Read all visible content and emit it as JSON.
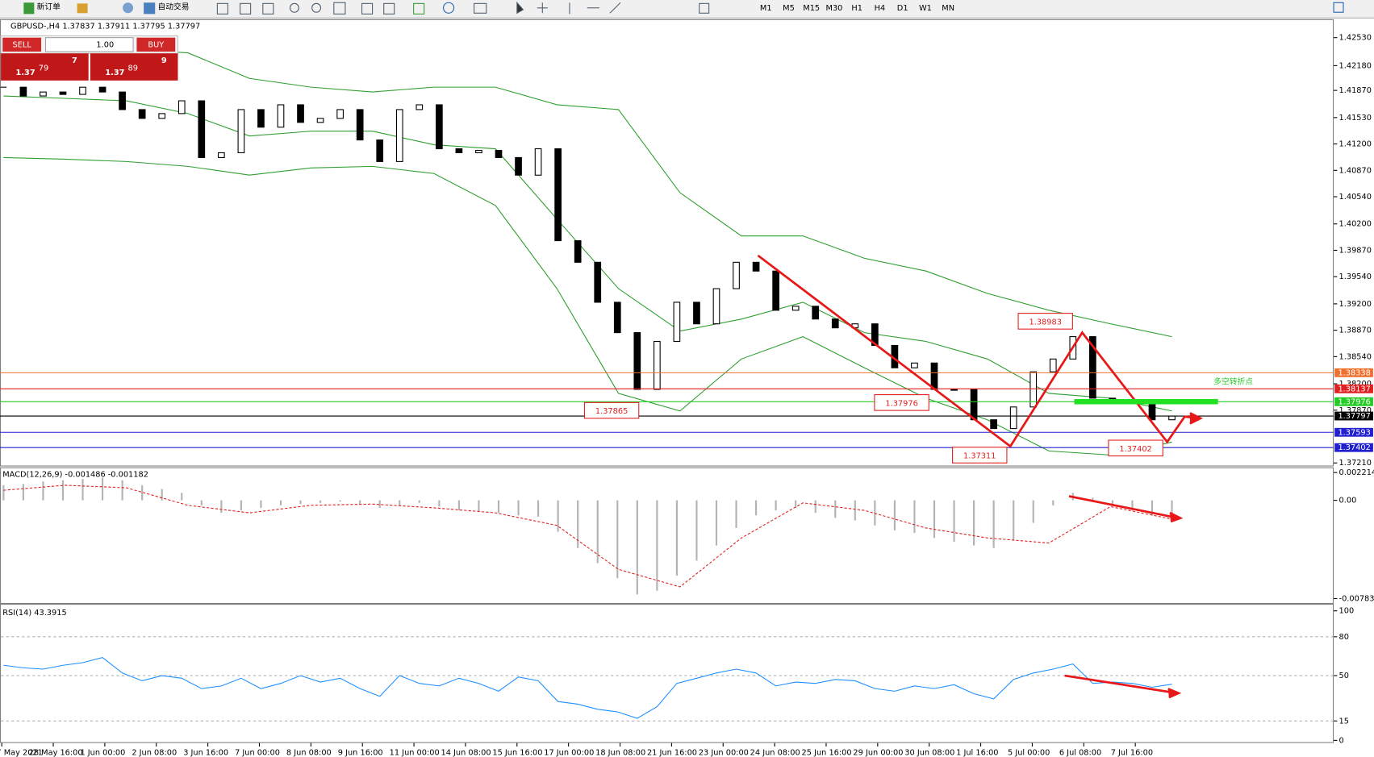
{
  "toolbar": {
    "new_order": "新订单",
    "auto_trading": "自动交易",
    "timeframes": [
      "M1",
      "M5",
      "M15",
      "M30",
      "H1",
      "H4",
      "D1",
      "W1",
      "MN"
    ]
  },
  "trade_panel": {
    "sell": "SELL",
    "lot": "1.00",
    "buy": "BUY",
    "sell_big": "1.37",
    "sell_pips": "79",
    "sell_frac": "7",
    "buy_big": "1.37",
    "buy_pips": "89",
    "buy_frac": "9"
  },
  "chart_data": [
    {
      "type": "candlestick",
      "title": "GBPUSD-,H4 1.37837 1.37911 1.37795 1.37797",
      "close": [
        1.4191,
        1.418,
        1.4185,
        1.4182,
        1.4191,
        1.4185,
        1.4163,
        1.4152,
        1.4158,
        1.4174,
        1.4103,
        1.4109,
        1.4163,
        1.4141,
        1.4169,
        1.4147,
        1.4152,
        1.4163,
        1.4125,
        1.4098,
        1.4163,
        1.4169,
        1.4114,
        1.4109,
        1.4112,
        1.4103,
        1.4081,
        1.4114,
        1.3999,
        1.3972,
        1.3922,
        1.3884,
        1.3813,
        1.3873,
        1.3922,
        1.3895,
        1.3939,
        1.3972,
        1.3961,
        1.3912,
        1.3917,
        1.3901,
        1.389,
        1.3895,
        1.3868,
        1.384,
        1.3846,
        1.3813,
        1.3813,
        1.3775,
        1.3764,
        1.3791,
        1.3835,
        1.3851,
        1.3879,
        1.3802,
        1.3797,
        1.3797,
        1.3775,
        1.37797
      ],
      "up_color": "#ffffff",
      "down_color": "#000000",
      "bands": {
        "color": "#2e9e2e",
        "upper": [
          1.424,
          1.4237,
          1.4239,
          1.4234,
          1.4202,
          1.4191,
          1.4185,
          1.4191,
          1.4191,
          1.4169,
          1.4163,
          1.4059,
          1.4005,
          1.4005,
          1.3977,
          1.3961,
          1.3933,
          1.3912,
          1.3895,
          1.3879
        ],
        "middle": [
          1.418,
          1.4177,
          1.4174,
          1.4158,
          1.413,
          1.4136,
          1.4136,
          1.4119,
          1.4114,
          1.4026,
          1.3939,
          1.3886,
          1.3901,
          1.3922,
          1.3884,
          1.3873,
          1.3851,
          1.3808,
          1.3802,
          1.3786
        ],
        "lower": [
          1.4103,
          1.4101,
          1.4098,
          1.4092,
          1.4081,
          1.409,
          1.4092,
          1.4083,
          1.4043,
          1.3939,
          1.3808,
          1.3786,
          1.3851,
          1.3879,
          1.384,
          1.3802,
          1.3775,
          1.3736,
          1.3731,
          1.3747
        ]
      },
      "ylim": [
        1.37177,
        1.4276
      ],
      "yticks": [
        {
          "value": 1.4253,
          "label": "1.42530"
        },
        {
          "value": 1.4218,
          "label": "1.42180"
        },
        {
          "value": 1.4187,
          "label": "1.41870"
        },
        {
          "value": 1.4153,
          "label": "1.41530"
        },
        {
          "value": 1.412,
          "label": "1.41200"
        },
        {
          "value": 1.4087,
          "label": "1.40870"
        },
        {
          "value": 1.4054,
          "label": "1.40540"
        },
        {
          "value": 1.402,
          "label": "1.40200"
        },
        {
          "value": 1.3987,
          "label": "1.39870"
        },
        {
          "value": 1.3954,
          "label": "1.39540"
        },
        {
          "value": 1.392,
          "label": "1.39200"
        },
        {
          "value": 1.3887,
          "label": "1.38870"
        },
        {
          "value": 1.3854,
          "label": "1.38540"
        },
        {
          "value": 1.382,
          "label": "1.38200"
        },
        {
          "value": 1.3787,
          "label": "1.37870"
        },
        {
          "value": 1.3721,
          "label": "1.37210"
        }
      ],
      "levels": [
        {
          "value": 1.38338,
          "color": "#f07030"
        },
        {
          "value": 1.38137,
          "color": "#e02020"
        },
        {
          "value": 1.37976,
          "color": "#22cc22"
        },
        {
          "value": 1.37797,
          "color": "#000000"
        },
        {
          "value": 1.37593,
          "color": "#2020d0"
        },
        {
          "value": 1.37402,
          "color": "#2020d0"
        }
      ],
      "annotations": [
        1.38983,
        1.37865,
        1.37976,
        1.37311,
        1.37402
      ],
      "annotation_text": "多空转折点"
    },
    {
      "type": "macd",
      "title": "MACD(12,26,9) -0.001486 -0.001182",
      "histogram": [
        0.0012,
        0.0013,
        0.0015,
        0.0016,
        0.0017,
        0.0018,
        0.0016,
        0.0012,
        0.0009,
        0.0006,
        -0.0004,
        -0.001,
        -0.0008,
        -0.0006,
        -0.0004,
        -0.0003,
        -0.0002,
        -0.0001,
        -0.0003,
        -0.0006,
        -0.0004,
        -0.0002,
        -0.0005,
        -0.0008,
        -0.0009,
        -0.001,
        -0.0012,
        -0.0013,
        -0.0025,
        -0.0038,
        -0.005,
        -0.0062,
        -0.0075,
        -0.0072,
        -0.006,
        -0.0048,
        -0.0036,
        -0.0022,
        -0.0012,
        -0.0008,
        -0.0006,
        -0.001,
        -0.0014,
        -0.0016,
        -0.002,
        -0.0024,
        -0.0026,
        -0.003,
        -0.0033,
        -0.0036,
        -0.0038,
        -0.0032,
        -0.0018,
        -0.0004,
        0.0006,
        0.0002,
        -0.0004,
        -0.0008,
        -0.0012,
        -0.0014
      ],
      "signal": [
        0.0008,
        0.0012,
        0.001,
        -0.0004,
        -0.001,
        -0.0004,
        -0.0003,
        -0.0006,
        -0.001,
        -0.002,
        -0.0055,
        -0.0069,
        -0.003,
        -0.0002,
        -0.0008,
        -0.0022,
        -0.003,
        -0.0034,
        -0.0005,
        -0.0015
      ],
      "histogram_color": "#b4b4b4",
      "signal_color": "#e02020",
      "ylim": [
        -0.00811,
        0.00249
      ],
      "yticks": [
        0.002214,
        {
          "value": 0,
          "label": "0.00"
        },
        -0.007831
      ]
    },
    {
      "type": "line",
      "title": "RSI(14) 43.3915",
      "values": [
        58,
        56,
        55,
        58,
        60,
        64,
        52,
        46,
        50,
        48,
        40,
        42,
        48,
        40,
        44,
        50,
        45,
        48,
        40,
        34,
        50,
        44,
        42,
        48,
        44,
        38,
        49,
        46,
        30,
        28,
        24,
        22,
        17,
        26,
        44,
        48,
        52,
        55,
        52,
        42,
        45,
        44,
        47,
        46,
        40,
        38,
        42,
        40,
        43,
        36,
        32,
        47,
        52,
        55,
        59,
        44,
        45,
        44,
        41,
        43.3915
      ],
      "color": "#1e90ff",
      "ylim": [
        0,
        100
      ],
      "yticks": [
        100,
        80,
        50,
        15,
        0
      ],
      "x_tick_labels": [
        "27 May 2021",
        "28 May 16:00",
        "1 Jun 00:00",
        "2 Jun 08:00",
        "3 Jun 16:00",
        "7 Jun 00:00",
        "8 Jun 08:00",
        "9 Jun 16:00",
        "11 Jun 00:00",
        "14 Jun 08:00",
        "15 Jun 16:00",
        "17 Jun 00:00",
        "18 Jun 08:00",
        "21 Jun 16:00",
        "23 Jun 00:00",
        "24 Jun 08:00",
        "25 Jun 16:00",
        "29 Jun 00:00",
        "30 Jun 08:00",
        "1 Jul 16:00",
        "5 Jul 00:00",
        "6 Jul 08:00",
        "7 Jul 16:00"
      ]
    }
  ]
}
